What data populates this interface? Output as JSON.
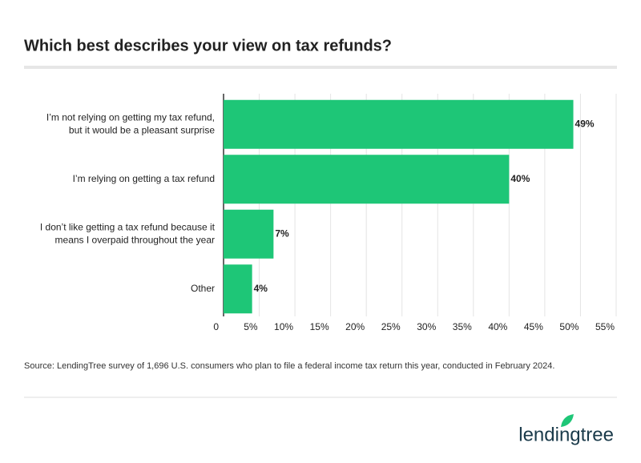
{
  "chart_data": {
    "type": "hbar",
    "title": "Which best describes your view on tax refunds?",
    "categories": [
      "I’m not relying on getting my tax refund,\nbut it would be a pleasant surprise",
      "I’m relying on getting a tax refund",
      "I don’t like getting a tax refund because it\nmeans I overpaid throughout the year",
      "Other"
    ],
    "values": [
      49,
      40,
      7,
      4
    ],
    "value_labels": [
      "49%",
      "40%",
      "7%",
      "4%"
    ],
    "color": "#1ec677",
    "xlim": [
      0,
      55
    ],
    "xticks": [
      0,
      {
        "value": 5,
        "label": "5%"
      },
      {
        "value": 10,
        "label": "10%"
      },
      {
        "value": 15,
        "label": "15%"
      },
      {
        "value": 20,
        "label": "20%"
      },
      {
        "value": 25,
        "label": "25%"
      },
      {
        "value": 30,
        "label": "30%"
      },
      {
        "value": 35,
        "label": "35%"
      },
      {
        "value": 40,
        "label": "40%"
      },
      {
        "value": 45,
        "label": "45%"
      },
      {
        "value": 50,
        "label": "50%"
      },
      {
        "value": 55,
        "label": "55%"
      }
    ],
    "grid": true,
    "source": "Source: LendingTree survey of 1,696 U.S. consumers who plan to file a federal income tax return this year, conducted in February 2024."
  },
  "brand": "lendingtree"
}
